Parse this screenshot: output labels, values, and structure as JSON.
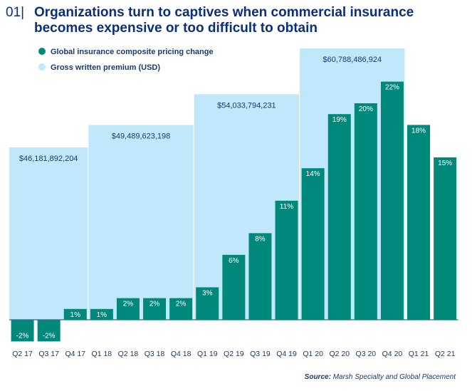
{
  "title": {
    "number": "01|",
    "line1": "Organizations turn to captives when commercial insurance",
    "line2": "becomes expensive or too difficult to obtain"
  },
  "legend": {
    "pricing": "Global insurance composite pricing change",
    "premium": "Gross written premium (USD)"
  },
  "source": {
    "label": "Source:",
    "text": "Marsh Specialty and Global Placement"
  },
  "colors": {
    "bar": "#00897b",
    "premium_block": "#c0e8fa",
    "title": "#0a2f7d",
    "text": "#1a3a6e"
  },
  "chart_data": {
    "type": "bar",
    "categories": [
      "Q2 17",
      "Q3 17",
      "Q4 17",
      "Q1 18",
      "Q2 18",
      "Q3 18",
      "Q4 18",
      "Q1 19",
      "Q2 19",
      "Q3 19",
      "Q4 19",
      "Q1 20",
      "Q2 20",
      "Q3 20",
      "Q4 20",
      "Q1 21",
      "Q2 21"
    ],
    "series": [
      {
        "name": "Global insurance composite pricing change",
        "values": [
          -2,
          -2,
          1,
          1,
          2,
          2,
          2,
          3,
          6,
          8,
          11,
          14,
          19,
          20,
          22,
          18,
          15
        ],
        "labels": [
          "-2%",
          "-2%",
          "1%",
          "1%",
          "2%",
          "2%",
          "2%",
          "3%",
          "6%",
          "8%",
          "11%",
          "14%",
          "19%",
          "20%",
          "22%",
          "18%",
          "15%"
        ]
      }
    ],
    "premium_blocks": [
      {
        "name": "Gross written premium (USD)",
        "label": "$46,181,892,204",
        "value": 46181892204,
        "from": "Q2 17",
        "to": "Q4 17"
      },
      {
        "name": "Gross written premium (USD)",
        "label": "$49,489,623,198",
        "value": 49489623198,
        "from": "Q1 18",
        "to": "Q4 18"
      },
      {
        "name": "Gross written premium (USD)",
        "label": "$54,033,794,231",
        "value": 54033794231,
        "from": "Q1 19",
        "to": "Q4 19"
      },
      {
        "name": "Gross written premium (USD)",
        "label": "$60,788,486,924",
        "value": 60788486924,
        "from": "Q1 20",
        "to": "Q4 20"
      }
    ],
    "title": "Organizations turn to captives when commercial insurance becomes expensive or too difficult to obtain",
    "xlabel": "",
    "ylabel": "",
    "grid": false,
    "legend_position": "top-left"
  }
}
